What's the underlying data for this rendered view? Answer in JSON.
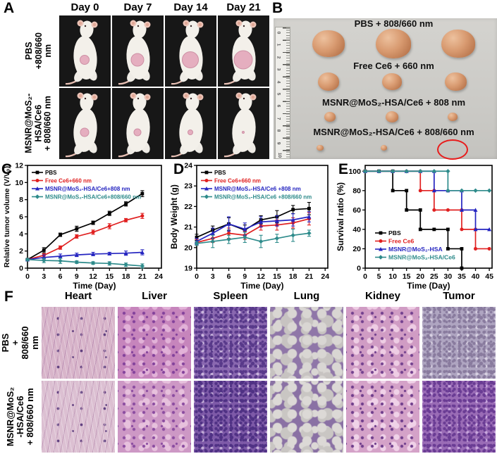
{
  "panel_labels": {
    "a": "A",
    "b": "B",
    "c": "C",
    "d": "D",
    "e": "E",
    "f": "F"
  },
  "colors": {
    "series_black": "#000000",
    "series_red": "#e02020",
    "series_blue": "#2424c0",
    "series_teal": "#2e8b8b",
    "red_circle": "#e81c1c",
    "photo_bg": "#cdccc8",
    "cell_bg": "#171717",
    "tumor_photo": "#d0926a",
    "mouse_body": "#f3f0ea",
    "tumor_pink": "#e5aebf"
  },
  "panelA": {
    "col_headers": [
      "Day 0",
      "Day 7",
      "Day 14",
      "Day 21"
    ],
    "rows": [
      {
        "label_lines": [
          "PBS",
          "+808/660 nm"
        ],
        "tumor_radii": [
          6.5,
          9,
          11.5,
          13
        ]
      },
      {
        "label_lines": [
          "MSNR@MoS₂-",
          "HSA/Ce6",
          "+ 808/660 nm"
        ],
        "tumor_radii": [
          6,
          5,
          3.5,
          1.5
        ]
      }
    ]
  },
  "panelB": {
    "groups": [
      {
        "label": "PBS + 808/660 nm",
        "sizes": [
          46,
          50,
          48
        ]
      },
      {
        "label": "Free Ce6 + 660 nm",
        "sizes": [
          30,
          28,
          31
        ]
      },
      {
        "label": "MSNR@MoS₂-HSA/Ce6 + 808 nm",
        "sizes": [
          16,
          18,
          14
        ]
      },
      {
        "label": "MSNR@MoS₂-HSA/Ce6 + 808/660 nm",
        "sizes": [
          10,
          9,
          0
        ],
        "red_circle_index": 2
      }
    ],
    "ruler_numbers": [
      "0",
      "1",
      "2",
      "3",
      "4",
      "5",
      "6",
      "7",
      "8",
      "9",
      "10"
    ]
  },
  "chart_data": [
    {
      "id": "C",
      "type": "line",
      "title": "",
      "xlabel": "Time (Day)",
      "ylabel": "Relative tumor volume (V/V₀)",
      "xlim": [
        0,
        24.5
      ],
      "ylim": [
        0,
        12
      ],
      "xticks": [
        0,
        3,
        6,
        9,
        12,
        15,
        18,
        21,
        24
      ],
      "yticks": [
        0,
        2,
        4,
        6,
        8,
        10,
        12
      ],
      "x": [
        0,
        3,
        6,
        9,
        12,
        15,
        18,
        21
      ],
      "grid": false,
      "legend_pos": "top-left",
      "series": [
        {
          "name": "PBS",
          "color": "#000000",
          "marker": "square",
          "values": [
            1.0,
            2.1,
            3.9,
            4.6,
            5.3,
            6.4,
            7.5,
            8.7
          ],
          "err": [
            0.1,
            0.3,
            0.2,
            0.3,
            0.2,
            0.25,
            0.25,
            0.35
          ]
        },
        {
          "name": "Free Ce6+660 nm",
          "color": "#e02020",
          "marker": "circle",
          "values": [
            1.0,
            1.5,
            2.4,
            3.7,
            4.2,
            4.9,
            5.6,
            6.1
          ],
          "err": [
            0.1,
            0.2,
            0.2,
            0.2,
            0.25,
            0.3,
            0.2,
            0.3
          ]
        },
        {
          "name": "MSNR@MoS₂-HSA/Ce6+808 nm",
          "color": "#2424c0",
          "marker": "triangle",
          "values": [
            1.0,
            1.25,
            1.4,
            1.55,
            1.65,
            1.7,
            1.75,
            1.85
          ],
          "err": [
            0.1,
            0.3,
            0.25,
            0.2,
            0.2,
            0.15,
            0.25,
            0.3
          ]
        },
        {
          "name": "MSNR@MoS₂-HSA/Ce6+808/660 nm",
          "color": "#2e8b8b",
          "marker": "diamond",
          "values": [
            1.0,
            0.9,
            0.85,
            0.7,
            0.6,
            0.55,
            0.4,
            0.25
          ],
          "err": [
            0.1,
            0.25,
            0.3,
            0.15,
            0.15,
            0.2,
            0.2,
            0.25
          ]
        }
      ]
    },
    {
      "id": "D",
      "type": "line",
      "title": "",
      "xlabel": "Time (Day)",
      "ylabel": "Body Weight (g)",
      "xlim": [
        0,
        24.5
      ],
      "ylim": [
        19,
        24
      ],
      "xticks": [
        0,
        3,
        6,
        9,
        12,
        15,
        18,
        21,
        24
      ],
      "yticks": [
        19,
        20,
        21,
        22,
        23,
        24
      ],
      "x": [
        0,
        3,
        6,
        9,
        12,
        15,
        18,
        21
      ],
      "grid": false,
      "legend_pos": "top-left",
      "series": [
        {
          "name": "PBS",
          "color": "#000000",
          "marker": "square",
          "values": [
            20.5,
            20.85,
            21.15,
            20.85,
            21.35,
            21.5,
            21.85,
            21.9
          ],
          "err": [
            0.15,
            0.2,
            0.3,
            0.25,
            0.2,
            0.3,
            0.2,
            0.3
          ]
        },
        {
          "name": "Free Ce6+660 nm",
          "color": "#e02020",
          "marker": "circle",
          "values": [
            20.25,
            20.45,
            20.7,
            20.6,
            21.05,
            21.1,
            21.2,
            21.4
          ],
          "err": [
            0.15,
            0.2,
            0.25,
            0.2,
            0.2,
            0.25,
            0.25,
            0.3
          ]
        },
        {
          "name": "MSNR@MoS₂-HSA/Ce6 +808 nm",
          "color": "#2424c0",
          "marker": "triangle",
          "values": [
            20.3,
            20.7,
            21.15,
            20.9,
            21.25,
            21.3,
            21.35,
            21.5
          ],
          "err": [
            0.15,
            0.25,
            0.35,
            0.3,
            0.25,
            0.25,
            0.3,
            0.25
          ]
        },
        {
          "name": "MSNR@MoS₂-HSA/Ce6 +808/660 nm",
          "color": "#2e8b8b",
          "marker": "diamond",
          "values": [
            20.2,
            20.3,
            20.4,
            20.5,
            20.3,
            20.45,
            20.6,
            20.7
          ],
          "err": [
            0.1,
            0.3,
            0.2,
            0.25,
            0.3,
            0.2,
            0.3,
            0.15
          ]
        }
      ]
    },
    {
      "id": "E",
      "type": "step",
      "title": "",
      "xlabel": "Time (Day)",
      "ylabel": "Survival ratio (%)",
      "xlim": [
        0,
        46
      ],
      "ylim": [
        0,
        106
      ],
      "xticks": [
        0,
        5,
        10,
        15,
        20,
        25,
        30,
        35,
        40,
        45
      ],
      "yticks": [
        0,
        20,
        40,
        60,
        80,
        100
      ],
      "grid": false,
      "legend_pos": "bottom-left",
      "series": [
        {
          "name": "PBS",
          "color": "#000000",
          "marker": "square",
          "points": [
            [
              0,
              100
            ],
            [
              5,
              100
            ],
            [
              10,
              100
            ],
            [
              10,
              80
            ],
            [
              15,
              80
            ],
            [
              15,
              60
            ],
            [
              20,
              60
            ],
            [
              20,
              40
            ],
            [
              25,
              40
            ],
            [
              30,
              40
            ],
            [
              30,
              20
            ],
            [
              35,
              20
            ],
            [
              35,
              0
            ]
          ]
        },
        {
          "name": "Free Ce6",
          "color": "#e02020",
          "marker": "circle",
          "points": [
            [
              0,
              100
            ],
            [
              5,
              100
            ],
            [
              10,
              100
            ],
            [
              15,
              100
            ],
            [
              20,
              100
            ],
            [
              20,
              80
            ],
            [
              25,
              80
            ],
            [
              25,
              60
            ],
            [
              30,
              60
            ],
            [
              35,
              60
            ],
            [
              35,
              40
            ],
            [
              40,
              40
            ],
            [
              40,
              20
            ],
            [
              45,
              20
            ]
          ]
        },
        {
          "name": "MSNR@MoS₂-HSA",
          "color": "#2424c0",
          "marker": "triangle",
          "points": [
            [
              0,
              100
            ],
            [
              5,
              100
            ],
            [
              10,
              100
            ],
            [
              15,
              100
            ],
            [
              20,
              100
            ],
            [
              25,
              100
            ],
            [
              25,
              80
            ],
            [
              30,
              80
            ],
            [
              35,
              80
            ],
            [
              35,
              60
            ],
            [
              40,
              60
            ],
            [
              40,
              40
            ],
            [
              45,
              40
            ]
          ]
        },
        {
          "name": "MSNR@MoS₂-HSA/Ce6",
          "color": "#2e8b8b",
          "marker": "diamond",
          "points": [
            [
              0,
              100
            ],
            [
              5,
              100
            ],
            [
              10,
              100
            ],
            [
              15,
              100
            ],
            [
              20,
              100
            ],
            [
              25,
              100
            ],
            [
              30,
              100
            ],
            [
              30,
              80
            ],
            [
              35,
              80
            ],
            [
              40,
              80
            ],
            [
              45,
              80
            ]
          ]
        }
      ]
    }
  ],
  "panelF": {
    "col_headers": [
      "Heart",
      "Liver",
      "Spleen",
      "Lung",
      "Kidney",
      "Tumor"
    ],
    "rows": [
      {
        "label_lines": [
          "PBS",
          "+ 808/660 nm"
        ]
      },
      {
        "label_lines": [
          "MSNR@MoS₂",
          "-HSA/Ce6",
          "+ 808/660 nm"
        ]
      }
    ],
    "tiles": [
      [
        {
          "organ": "heart",
          "type": "fiber",
          "base": "#d8b5ca",
          "d1": "#bd92b5",
          "d2": "#5f3f7e"
        },
        {
          "organ": "liver",
          "type": "cells",
          "base": "#c685bc",
          "d1": "#e2b2d8",
          "d2": "#82419b"
        },
        {
          "organ": "spleen",
          "type": "dense",
          "base": "#8a68b0",
          "d1": "#58398a",
          "d2": "#cbb8de"
        },
        {
          "organ": "lung",
          "type": "alveoli",
          "base": "#c7c3c1",
          "d1": "#8f76a8",
          "d2": "#d9d6d3"
        },
        {
          "organ": "kidney",
          "type": "cells",
          "base": "#d09cc4",
          "d1": "#eecde4",
          "d2": "#73418f"
        },
        {
          "organ": "tumor",
          "type": "dense",
          "base": "#afa5c1",
          "d1": "#897b9e",
          "d2": "#d8d1e2"
        }
      ],
      [
        {
          "organ": "heart",
          "type": "fiber",
          "base": "#dcc0d2",
          "d1": "#c29cba",
          "d2": "#604080"
        },
        {
          "organ": "liver",
          "type": "cells",
          "base": "#cd98c5",
          "d1": "#e7c1dd",
          "d2": "#8a4ba0"
        },
        {
          "organ": "spleen",
          "type": "dense",
          "base": "#7e5aa8",
          "d1": "#4f3184",
          "d2": "#c4afd8"
        },
        {
          "organ": "lung",
          "type": "alveoli",
          "base": "#c9c6c3",
          "d1": "#8a71a4",
          "d2": "#dcd9d6"
        },
        {
          "organ": "kidney",
          "type": "cells",
          "base": "#d4a2c8",
          "d1": "#f0d2e8",
          "d2": "#6f3d8c"
        },
        {
          "organ": "tumor",
          "type": "dense",
          "base": "#9a6cb6",
          "d1": "#6a3c94",
          "d2": "#c9a8de"
        }
      ]
    ]
  }
}
